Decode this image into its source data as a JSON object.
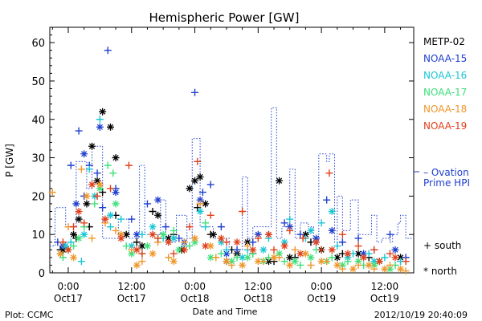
{
  "chart_data": {
    "type": "scatter",
    "title": "Hemispheric Power [GW]",
    "ylabel": "P [GW]",
    "xlabel": "Date and Time",
    "x_unit": "hours since 2012-10-17 00:00",
    "xlim": [
      -3.5,
      65.5
    ],
    "ylim": [
      0,
      64
    ],
    "grid": false,
    "y_ticks": [
      0,
      10,
      20,
      30,
      40,
      50,
      60
    ],
    "x_ticks": [
      {
        "x": 0,
        "time": "0:00",
        "date": "Oct17"
      },
      {
        "x": 12,
        "time": "12:00",
        "date": "Oct17"
      },
      {
        "x": 24,
        "time": "0:00",
        "date": "Oct18"
      },
      {
        "x": 36,
        "time": "12:00",
        "date": "Oct18"
      },
      {
        "x": 48,
        "time": "0:00",
        "date": "Oct19"
      },
      {
        "x": 60,
        "time": "12:00",
        "date": "Oct19"
      }
    ],
    "legend": {
      "placement": "right",
      "satellites": [
        {
          "name": "METP-02",
          "color": "#000000"
        },
        {
          "name": "NOAA-15",
          "color": "#1f3fcf"
        },
        {
          "name": "NOAA-16",
          "color": "#19c6d6"
        },
        {
          "name": "NOAA-17",
          "color": "#3ee07a"
        },
        {
          "name": "NOAA-18",
          "color": "#f0962a"
        },
        {
          "name": "NOAA-19",
          "color": "#e0401a"
        }
      ],
      "ovation_line1": "– Ovation",
      "ovation_line2": "Prime HPI",
      "ovation_color": "#1f3fcf",
      "south_label": "+ south",
      "north_label": "* north"
    },
    "series": [
      {
        "name": "METP-02",
        "color": "#000000",
        "south": [
          [
            -1.5,
            6
          ],
          [
            1.5,
            9
          ],
          [
            4,
            12
          ],
          [
            6.5,
            21
          ],
          [
            9,
            15
          ],
          [
            13,
            8
          ],
          [
            16,
            16
          ],
          [
            20,
            10
          ],
          [
            24.5,
            17
          ],
          [
            27,
            10
          ],
          [
            31,
            6
          ],
          [
            35,
            5
          ],
          [
            39,
            3
          ],
          [
            43,
            4
          ],
          [
            46,
            8
          ],
          [
            52,
            5
          ],
          [
            57,
            4
          ]
        ],
        "north": [
          [
            -1,
            6
          ],
          [
            1,
            10
          ],
          [
            2,
            14
          ],
          [
            3.5,
            18
          ],
          [
            4.5,
            33
          ],
          [
            5.5,
            24
          ],
          [
            6.5,
            42
          ],
          [
            8,
            38
          ],
          [
            9,
            30
          ],
          [
            11,
            10
          ],
          [
            14,
            7
          ],
          [
            17,
            15
          ],
          [
            19,
            9
          ],
          [
            21.5,
            6
          ],
          [
            23,
            22
          ],
          [
            24,
            24
          ],
          [
            25,
            25
          ],
          [
            26,
            18
          ],
          [
            27.5,
            10
          ],
          [
            30,
            3
          ],
          [
            32,
            5
          ],
          [
            34,
            8
          ],
          [
            38,
            3
          ],
          [
            40,
            24
          ],
          [
            42,
            4
          ],
          [
            45,
            10
          ],
          [
            48,
            6
          ],
          [
            51,
            4
          ],
          [
            55,
            5
          ],
          [
            59,
            3
          ],
          [
            63,
            4
          ]
        ]
      },
      {
        "name": "NOAA-15",
        "color": "#1f3fcf",
        "south": [
          [
            -2,
            8
          ],
          [
            0.5,
            28
          ],
          [
            2,
            37
          ],
          [
            3,
            20
          ],
          [
            4,
            28
          ],
          [
            5.5,
            26
          ],
          [
            6.5,
            17
          ],
          [
            7.5,
            58
          ],
          [
            9,
            22
          ],
          [
            12,
            14
          ],
          [
            15,
            18
          ],
          [
            18.5,
            12
          ],
          [
            21,
            9
          ],
          [
            24,
            47
          ],
          [
            25.5,
            21
          ],
          [
            27,
            23
          ],
          [
            29,
            12
          ],
          [
            32,
            6
          ],
          [
            35,
            8
          ],
          [
            38,
            10
          ],
          [
            41,
            13
          ],
          [
            44,
            10
          ],
          [
            47,
            8
          ],
          [
            49,
            19
          ],
          [
            52,
            8
          ],
          [
            55,
            9
          ],
          [
            58,
            6
          ],
          [
            61,
            10
          ],
          [
            64,
            4
          ]
        ],
        "north": [
          [
            -1,
            7
          ],
          [
            1.5,
            18
          ],
          [
            3,
            31
          ],
          [
            6,
            38
          ],
          [
            9,
            21
          ],
          [
            13,
            10
          ],
          [
            17,
            19
          ],
          [
            22,
            8
          ],
          [
            25,
            19
          ],
          [
            30,
            5
          ],
          [
            36,
            10
          ],
          [
            42,
            12
          ],
          [
            47,
            9
          ],
          [
            50,
            11
          ],
          [
            56,
            5
          ],
          [
            62,
            6
          ]
        ]
      },
      {
        "name": "NOAA-16",
        "color": "#19c6d6",
        "south": [
          [
            -1.5,
            5
          ],
          [
            0.5,
            8
          ],
          [
            2.5,
            3
          ],
          [
            4,
            27
          ],
          [
            6,
            40
          ],
          [
            8,
            12
          ],
          [
            10,
            14
          ],
          [
            14,
            10
          ],
          [
            18,
            9
          ],
          [
            22,
            7
          ],
          [
            26,
            12
          ],
          [
            30,
            6
          ],
          [
            34,
            6
          ],
          [
            38,
            9
          ],
          [
            42,
            14
          ],
          [
            45,
            9
          ],
          [
            48,
            13
          ],
          [
            51,
            7
          ],
          [
            54,
            5
          ],
          [
            57,
            5
          ],
          [
            60,
            4
          ],
          [
            63,
            3
          ]
        ],
        "north": [
          [
            -0.5,
            7
          ],
          [
            3,
            10
          ],
          [
            5,
            20
          ],
          [
            8,
            15
          ],
          [
            12,
            7
          ],
          [
            16,
            12
          ],
          [
            20,
            9
          ],
          [
            25,
            16
          ],
          [
            29,
            8
          ],
          [
            33,
            4
          ],
          [
            37,
            6
          ],
          [
            41,
            8
          ],
          [
            46,
            11
          ],
          [
            50,
            16
          ],
          [
            53,
            4
          ],
          [
            58,
            3
          ]
        ]
      },
      {
        "name": "NOAA-17",
        "color": "#3ee07a",
        "south": [
          [
            -1,
            4
          ],
          [
            1,
            7
          ],
          [
            3,
            12
          ],
          [
            5,
            18
          ],
          [
            7.5,
            28
          ],
          [
            8.5,
            26
          ],
          [
            11,
            7
          ],
          [
            14,
            5
          ],
          [
            17,
            9
          ],
          [
            20,
            11
          ],
          [
            23,
            7
          ],
          [
            26,
            13
          ],
          [
            29,
            5
          ],
          [
            32,
            4
          ],
          [
            35,
            5
          ],
          [
            38,
            4
          ],
          [
            41,
            3
          ],
          [
            44,
            2
          ],
          [
            47,
            6
          ],
          [
            50,
            4
          ],
          [
            53,
            3
          ],
          [
            56,
            2
          ],
          [
            59,
            3
          ],
          [
            62,
            2
          ]
        ],
        "north": [
          [
            0,
            6
          ],
          [
            2,
            9
          ],
          [
            6,
            22
          ],
          [
            9,
            18
          ],
          [
            12,
            5
          ],
          [
            15,
            7
          ],
          [
            18,
            10
          ],
          [
            21,
            6
          ],
          [
            24,
            8
          ],
          [
            27,
            4
          ],
          [
            31,
            3
          ],
          [
            34,
            4
          ],
          [
            37,
            3
          ],
          [
            40,
            5
          ],
          [
            43,
            3
          ],
          [
            46,
            4
          ],
          [
            49,
            3
          ],
          [
            52,
            2
          ],
          [
            55,
            3
          ],
          [
            58,
            2
          ],
          [
            61,
            1
          ]
        ]
      },
      {
        "name": "NOAA-18",
        "color": "#f0962a",
        "south": [
          [
            -3,
            21
          ],
          [
            0,
            12
          ],
          [
            2.5,
            27
          ],
          [
            4.5,
            9
          ],
          [
            7,
            13
          ],
          [
            9,
            11
          ],
          [
            12,
            6
          ],
          [
            14,
            3
          ],
          [
            17,
            8
          ],
          [
            19,
            4
          ],
          [
            22,
            8
          ],
          [
            25,
            18
          ],
          [
            28,
            4
          ],
          [
            31,
            2
          ],
          [
            34,
            7
          ],
          [
            37,
            3
          ],
          [
            40,
            4
          ],
          [
            43,
            6
          ],
          [
            46,
            2
          ],
          [
            49,
            3
          ],
          [
            52,
            1
          ],
          [
            55,
            2
          ],
          [
            58,
            1
          ],
          [
            61,
            2
          ],
          [
            64,
            0.5
          ]
        ],
        "north": [
          [
            -1.5,
            5
          ],
          [
            1,
            4
          ],
          [
            3.5,
            20
          ],
          [
            6,
            23
          ],
          [
            10,
            10
          ],
          [
            13,
            2
          ],
          [
            16,
            5
          ],
          [
            20,
            3
          ],
          [
            24,
            9
          ],
          [
            27,
            7
          ],
          [
            30,
            3
          ],
          [
            33,
            2
          ],
          [
            36,
            3
          ],
          [
            39,
            4
          ],
          [
            42,
            2
          ],
          [
            45,
            5
          ],
          [
            48,
            3
          ],
          [
            51,
            2
          ],
          [
            54,
            1
          ],
          [
            57,
            2
          ],
          [
            60,
            1
          ],
          [
            63,
            1
          ]
        ]
      },
      {
        "name": "NOAA-19",
        "color": "#e0401a",
        "south": [
          [
            -1,
            8
          ],
          [
            1,
            12
          ],
          [
            3,
            13
          ],
          [
            5.5,
            20
          ],
          [
            8,
            22
          ],
          [
            11.5,
            28
          ],
          [
            14,
            5
          ],
          [
            17,
            9
          ],
          [
            20,
            5
          ],
          [
            23,
            12
          ],
          [
            24.5,
            29
          ],
          [
            27,
            15
          ],
          [
            30,
            8
          ],
          [
            33,
            16
          ],
          [
            36,
            9
          ],
          [
            39,
            6
          ],
          [
            42,
            11
          ],
          [
            44.5,
            9
          ],
          [
            48,
            6
          ],
          [
            49.5,
            26
          ],
          [
            52,
            10
          ],
          [
            55,
            7
          ],
          [
            58,
            6
          ],
          [
            61,
            5
          ],
          [
            64,
            3
          ]
        ],
        "north": [
          [
            0,
            6
          ],
          [
            2,
            16
          ],
          [
            4.5,
            23
          ],
          [
            7,
            14
          ],
          [
            10,
            9
          ],
          [
            13,
            6
          ],
          [
            16,
            10
          ],
          [
            19,
            8
          ],
          [
            22,
            6
          ],
          [
            26,
            7
          ],
          [
            29,
            9
          ],
          [
            32,
            8
          ],
          [
            35,
            6
          ],
          [
            38,
            10
          ],
          [
            41,
            7
          ],
          [
            44,
            5
          ],
          [
            47,
            8
          ],
          [
            50,
            6
          ],
          [
            53,
            5
          ],
          [
            56,
            4
          ],
          [
            59,
            3
          ],
          [
            62,
            4
          ]
        ]
      }
    ],
    "ovation_hpi": [
      [
        -3.5,
        7
      ],
      [
        -2.5,
        17
      ],
      [
        -0.5,
        12
      ],
      [
        1.5,
        29
      ],
      [
        3.5,
        22
      ],
      [
        4.5,
        33
      ],
      [
        6.5,
        9
      ],
      [
        9.5,
        14
      ],
      [
        11.5,
        9
      ],
      [
        13.5,
        28
      ],
      [
        14.5,
        10
      ],
      [
        17.5,
        19
      ],
      [
        18.5,
        8
      ],
      [
        20.5,
        15
      ],
      [
        22.5,
        9
      ],
      [
        23.5,
        35
      ],
      [
        25,
        12
      ],
      [
        27.5,
        9
      ],
      [
        30.5,
        6
      ],
      [
        33,
        25
      ],
      [
        34,
        9
      ],
      [
        35,
        12
      ],
      [
        38.5,
        43
      ],
      [
        39.5,
        9
      ],
      [
        40.5,
        12
      ],
      [
        42,
        27
      ],
      [
        43,
        9
      ],
      [
        44,
        13
      ],
      [
        45.5,
        12
      ],
      [
        46.5,
        8
      ],
      [
        47.5,
        31
      ],
      [
        49,
        29
      ],
      [
        49.5,
        31
      ],
      [
        50.5,
        8
      ],
      [
        51,
        20
      ],
      [
        52,
        11
      ],
      [
        53.5,
        19
      ],
      [
        55,
        10
      ],
      [
        57.5,
        15
      ],
      [
        58.5,
        8
      ],
      [
        59.5,
        9
      ],
      [
        61,
        8
      ],
      [
        61.5,
        10
      ],
      [
        62.5,
        13
      ],
      [
        63,
        15
      ],
      [
        64,
        9
      ],
      [
        65.5,
        9
      ]
    ]
  },
  "footer": {
    "plot_label": "Plot: CCMC",
    "timestamp": "2012/10/19 20:40:09"
  }
}
